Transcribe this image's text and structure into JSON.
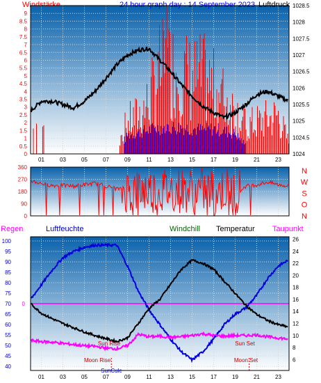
{
  "header": {
    "left_label": "Windstärke",
    "center_title": "24 hour graph day : 14 September 2023",
    "right_label": "Luftdruck"
  },
  "colors": {
    "wind_speed": "#ff0000",
    "wind_gust": "#0000ff",
    "pressure": "#000000",
    "humidity": "#0000dd",
    "temperature": "#000000",
    "dewpoint": "#ff00ff",
    "windchill": "#006600",
    "bg_top": "#0a62ac",
    "bg_bottom": "#ffffff"
  },
  "x_ticks": [
    "01",
    "03",
    "05",
    "07",
    "09",
    "11",
    "13",
    "15",
    "17",
    "19",
    "21",
    "23"
  ],
  "chart_data": [
    {
      "type": "line",
      "title": "24 hour graph day : 14 September 2023",
      "y_left_label": "Windstärke",
      "y_right_label": "Luftdruck",
      "y_left_ticks": [
        "0",
        "0.5",
        "1",
        "1.5",
        "2",
        "2.5",
        "3",
        "3.5",
        "4",
        "4.5",
        "5",
        "5.5",
        "6",
        "6.5",
        "7",
        "7.5",
        "8",
        "8.5",
        "9"
      ],
      "y_left_range": [
        0,
        9.5
      ],
      "y_right_ticks": [
        "1028.5",
        "1028",
        "1027.5",
        "1027",
        "1026.5",
        "1026",
        "1025.5",
        "1025",
        "1024.5",
        "1024"
      ],
      "y_right_range": [
        1024,
        1028.5
      ],
      "pressure": {
        "x": [
          0,
          1,
          2,
          3,
          4,
          5,
          6,
          7,
          8,
          9,
          10,
          11,
          12,
          13,
          14,
          15,
          16,
          17,
          18,
          19,
          20,
          21,
          22,
          23,
          24
        ],
        "y": [
          1025.3,
          1025.6,
          1025.6,
          1025.5,
          1025.4,
          1025.6,
          1025.9,
          1026.3,
          1026.7,
          1027.0,
          1027.15,
          1027.2,
          1026.85,
          1026.5,
          1026.1,
          1025.75,
          1025.45,
          1025.25,
          1025.1,
          1025.25,
          1025.5,
          1025.8,
          1025.9,
          1025.75,
          1025.6
        ]
      },
      "wind_speed": {
        "x": [
          0,
          1,
          2,
          3,
          4,
          5,
          6,
          7,
          8,
          9,
          10,
          11,
          12,
          13,
          14,
          15,
          16,
          17,
          18,
          19,
          20,
          21,
          22,
          23,
          24
        ],
        "y": [
          0.8,
          0.2,
          0.0,
          0.0,
          0.0,
          0.0,
          0.0,
          0.0,
          0.5,
          1.8,
          2.2,
          3.0,
          4.8,
          5.0,
          4.6,
          4.3,
          4.4,
          3.8,
          3.2,
          2.5,
          1.6,
          1.8,
          2.0,
          2.2,
          0.6
        ]
      },
      "wind_gust": {
        "x": [
          0,
          1,
          2,
          3,
          4,
          5,
          6,
          7,
          8,
          9,
          10,
          11,
          12,
          13,
          14,
          15,
          16,
          17,
          18,
          19,
          20,
          21,
          22,
          23,
          24
        ],
        "y": [
          0.0,
          0.0,
          0.0,
          0.0,
          0.0,
          0.0,
          0.0,
          0.0,
          0.3,
          1.4,
          1.6,
          1.8,
          2.0,
          2.0,
          2.0,
          1.9,
          1.8,
          1.9,
          1.7,
          1.5,
          0.6,
          0.4,
          0.2,
          0.2,
          0.0
        ]
      }
    },
    {
      "type": "scatter",
      "y_ticks": [
        "360",
        "270",
        "180",
        "90",
        "0"
      ],
      "y_range": [
        0,
        360
      ],
      "compass_labels": [
        "N",
        "W",
        "S",
        "O",
        "N"
      ],
      "direction": {
        "x": [
          0,
          1,
          2,
          3,
          4,
          5,
          6,
          7,
          8,
          9,
          10,
          11,
          12,
          13,
          14,
          15,
          16,
          17,
          18,
          19,
          20,
          21,
          22,
          23,
          24
        ],
        "y": [
          260,
          240,
          225,
          225,
          220,
          230,
          240,
          220,
          200,
          190,
          200,
          210,
          200,
          190,
          210,
          220,
          200,
          180,
          170,
          160,
          220,
          230,
          250,
          230,
          220
        ]
      }
    },
    {
      "type": "line",
      "y_left_label": "Regen",
      "legend": [
        "Luftfeuchte",
        "Windchill",
        "Temperatur",
        "Taupunkt"
      ],
      "y_left_ticks": [
        "100",
        "95",
        "90",
        "85",
        "80",
        "75",
        "70",
        "65",
        "60",
        "55",
        "50",
        "45",
        "40"
      ],
      "y_left_range": [
        38,
        102
      ],
      "y_right_ticks": [
        "26",
        "24",
        "22",
        "20",
        "18",
        "16",
        "14",
        "12",
        "10",
        "8",
        "6"
      ],
      "y_right_range": [
        4.2,
        26.4
      ],
      "zero_line_label": "0",
      "zero_line_value": 70,
      "humidity": {
        "x": [
          0,
          1,
          2,
          3,
          4,
          5,
          6,
          7,
          8,
          9,
          10,
          11,
          12,
          13,
          14,
          15,
          16,
          17,
          18,
          19,
          20,
          21,
          22,
          23,
          24
        ],
        "y": [
          72,
          79,
          86,
          92,
          95,
          97,
          98,
          98,
          98,
          88,
          76,
          67,
          60,
          53,
          47,
          43,
          47,
          53,
          60,
          65,
          68,
          74,
          82,
          88,
          91
        ]
      },
      "temperature": {
        "x": [
          0,
          1,
          2,
          3,
          4,
          5,
          6,
          7,
          8,
          9,
          10,
          11,
          12,
          13,
          14,
          15,
          16,
          17,
          18,
          19,
          20,
          21,
          22,
          23,
          24
        ],
        "y": [
          15.3,
          13.7,
          12.8,
          12.0,
          11.3,
          10.6,
          10.0,
          9.5,
          9.0,
          9.6,
          12.0,
          14.5,
          16.0,
          18.5,
          21.0,
          22.5,
          22.0,
          21.0,
          19.0,
          17.0,
          15.0,
          13.5,
          12.5,
          11.8,
          11.4
        ]
      },
      "dewpoint": {
        "x": [
          0,
          1,
          2,
          3,
          4,
          5,
          6,
          7,
          8,
          9,
          10,
          11,
          12,
          13,
          14,
          15,
          16,
          17,
          18,
          19,
          20,
          21,
          22,
          23,
          24
        ],
        "y": [
          9.2,
          9.0,
          8.9,
          8.7,
          8.5,
          8.3,
          8.2,
          7.9,
          7.8,
          8.3,
          10.2,
          9.8,
          9.9,
          9.7,
          9.8,
          10.0,
          10.3,
          10.0,
          9.9,
          10.0,
          10.0,
          10.1,
          9.8,
          9.6,
          9.4
        ]
      },
      "annotations": [
        {
          "text": "Sun Rise",
          "hour": 7.3,
          "value": 50,
          "color": "#cc0000"
        },
        {
          "text": "Moon Rise",
          "hour": 6.2,
          "value": 42,
          "color": "#cc0000"
        },
        {
          "text": "Sun Set",
          "hour": 19.9,
          "value": 50,
          "color": "#cc0000"
        },
        {
          "text": "Moon Set",
          "hour": 20.0,
          "value": 42,
          "color": "#cc0000"
        },
        {
          "text": "SunCulc",
          "hour": 7.5,
          "value": 37,
          "color": "#0000cc"
        }
      ]
    }
  ]
}
